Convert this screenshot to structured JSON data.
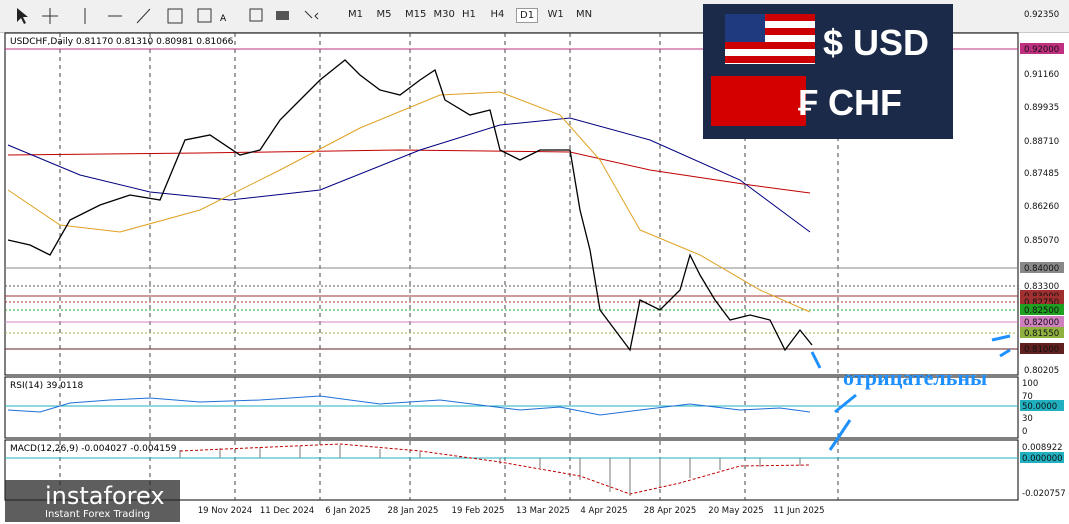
{
  "toolbar": {
    "text_tool": "A",
    "timeframes": [
      "M1",
      "M5",
      "M15",
      "M30",
      "H1",
      "H4",
      "D1",
      "W1",
      "MN"
    ],
    "active": "D1"
  },
  "chart": {
    "header": "USDCHF,Daily  0.81170 0.81310 0.80981 0.81066",
    "price_labels": [
      "0.92350",
      "0.92000",
      "0.91160",
      "0.89935",
      "0.88710",
      "0.87485",
      "0.86260",
      "0.85070",
      "0.84000",
      "0.83300",
      "0.83000",
      "0.82750",
      "0.82500",
      "0.82000",
      "0.81550",
      "0.81000",
      "0.80205"
    ],
    "dates": [
      "19 Nov 2024",
      "11 Dec 2024",
      "6 Jan 2025",
      "28 Jan 2025",
      "19 Feb 2025",
      "13 Mar 2025",
      "4 Apr 2025",
      "28 Apr 2025",
      "20 May 2025",
      "11 Jun 2025"
    ]
  },
  "rsi": {
    "header": "RSI(14) 39.0118",
    "labels": [
      "100",
      "70",
      "50.0000",
      "30",
      "0"
    ]
  },
  "macd": {
    "header": "MACD(12,26,9) -0.004027 -0.004159",
    "labels": [
      "0.008922",
      "0.000000",
      "-0.020757"
    ]
  },
  "banner": {
    "usd": "$ USD",
    "chf": "₣ CHF"
  },
  "watermark": {
    "brand": "instaforex",
    "tagline": "Instant Forex Trading"
  },
  "annotation": "отрицательны"
}
